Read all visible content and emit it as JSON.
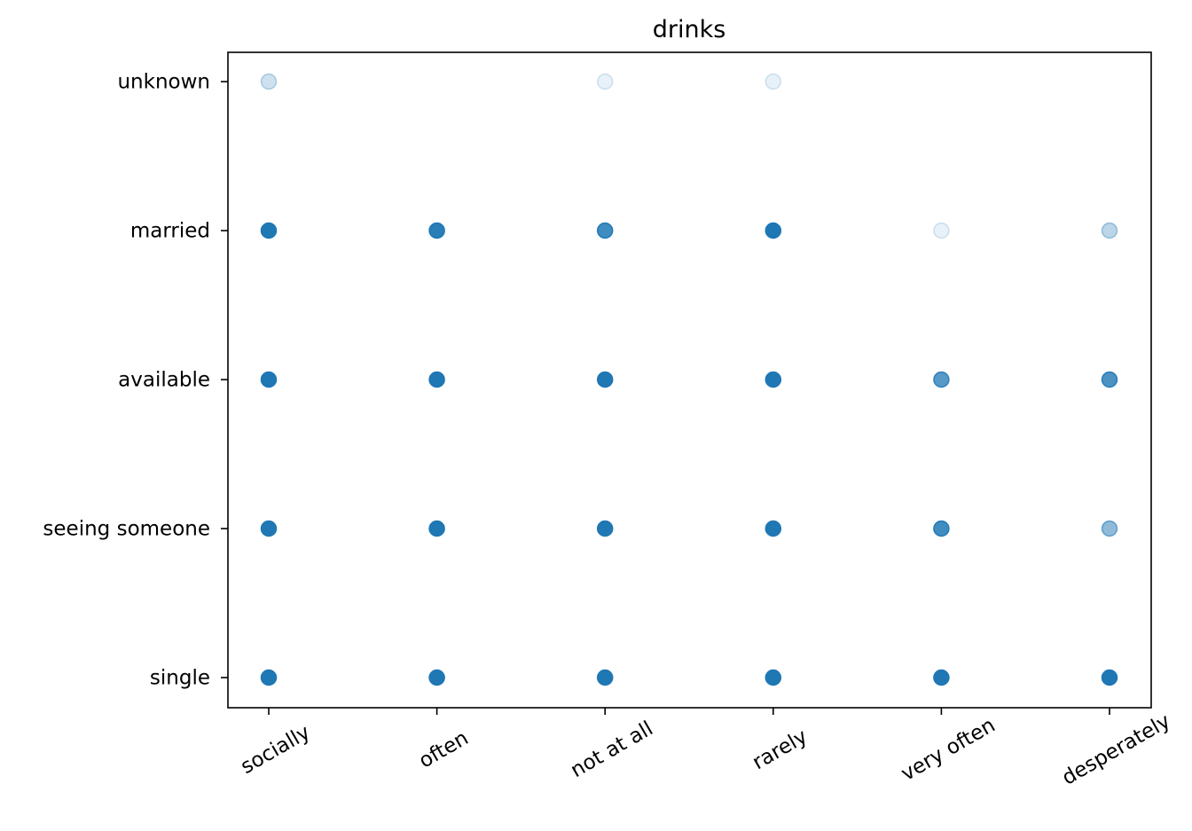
{
  "chart_data": {
    "type": "scatter",
    "title": "drinks",
    "xlabel": "",
    "ylabel": "",
    "x_categories": [
      "socially",
      "often",
      "not at all",
      "rarely",
      "very often",
      "desperately"
    ],
    "y_categories": [
      "single",
      "seeing someone",
      "available",
      "married",
      "unknown"
    ],
    "grid": false,
    "color": "#1f77b4",
    "points": [
      {
        "x": "socially",
        "y": "unknown",
        "opacity": 0.22
      },
      {
        "x": "not at all",
        "y": "unknown",
        "opacity": 0.1
      },
      {
        "x": "rarely",
        "y": "unknown",
        "opacity": 0.1
      },
      {
        "x": "socially",
        "y": "married",
        "opacity": 1.0
      },
      {
        "x": "often",
        "y": "married",
        "opacity": 0.95
      },
      {
        "x": "not at all",
        "y": "married",
        "opacity": 0.85
      },
      {
        "x": "rarely",
        "y": "married",
        "opacity": 1.0
      },
      {
        "x": "very often",
        "y": "married",
        "opacity": 0.1
      },
      {
        "x": "desperately",
        "y": "married",
        "opacity": 0.3
      },
      {
        "x": "socially",
        "y": "available",
        "opacity": 1.0
      },
      {
        "x": "often",
        "y": "available",
        "opacity": 1.0
      },
      {
        "x": "not at all",
        "y": "available",
        "opacity": 1.0
      },
      {
        "x": "rarely",
        "y": "available",
        "opacity": 1.0
      },
      {
        "x": "very often",
        "y": "available",
        "opacity": 0.75
      },
      {
        "x": "desperately",
        "y": "available",
        "opacity": 0.8
      },
      {
        "x": "socially",
        "y": "seeing someone",
        "opacity": 1.0
      },
      {
        "x": "often",
        "y": "seeing someone",
        "opacity": 1.0
      },
      {
        "x": "not at all",
        "y": "seeing someone",
        "opacity": 1.0
      },
      {
        "x": "rarely",
        "y": "seeing someone",
        "opacity": 1.0
      },
      {
        "x": "very often",
        "y": "seeing someone",
        "opacity": 0.85
      },
      {
        "x": "desperately",
        "y": "seeing someone",
        "opacity": 0.5
      },
      {
        "x": "socially",
        "y": "single",
        "opacity": 1.0
      },
      {
        "x": "often",
        "y": "single",
        "opacity": 1.0
      },
      {
        "x": "not at all",
        "y": "single",
        "opacity": 1.0
      },
      {
        "x": "rarely",
        "y": "single",
        "opacity": 1.0
      },
      {
        "x": "very often",
        "y": "single",
        "opacity": 1.0
      },
      {
        "x": "desperately",
        "y": "single",
        "opacity": 1.0
      }
    ]
  }
}
